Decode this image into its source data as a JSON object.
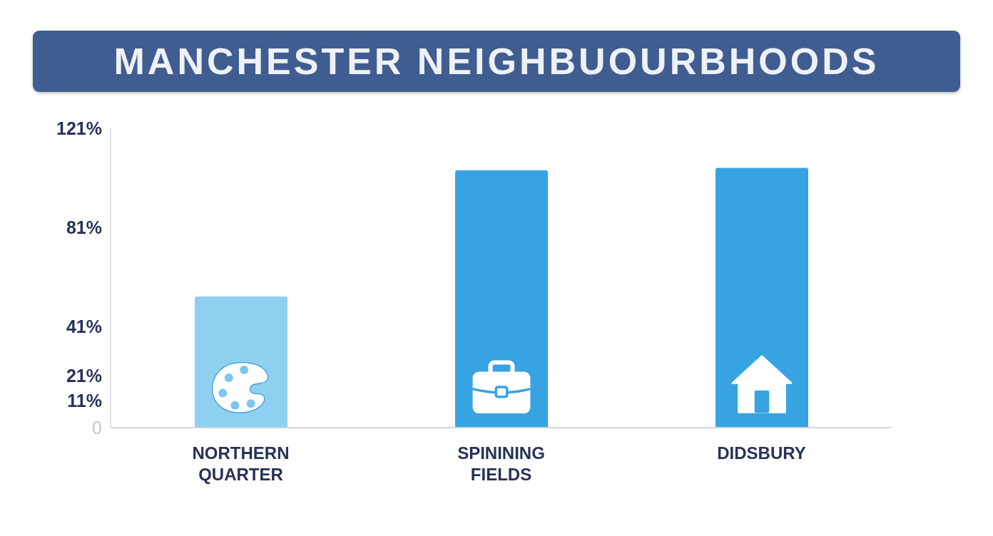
{
  "chart_data": {
    "type": "bar",
    "title": "MANCHESTER NEIGHBUOURBHOODS",
    "categories": [
      "NORTHERN QUARTER",
      "SPININING FIELDS",
      "DIDSBURY"
    ],
    "values": [
      53,
      104,
      105
    ],
    "colors": [
      "#8fd0f1",
      "#37a3e1",
      "#37a3e1"
    ],
    "ylim": [
      0,
      121
    ],
    "yticks": [
      0,
      {
        "value": 11,
        "label": "11%"
      },
      {
        "value": 21,
        "label": "21%"
      },
      {
        "value": 41,
        "label": "41%"
      },
      {
        "value": 81,
        "label": "81%"
      },
      {
        "value": 121,
        "label": "121%"
      }
    ]
  }
}
